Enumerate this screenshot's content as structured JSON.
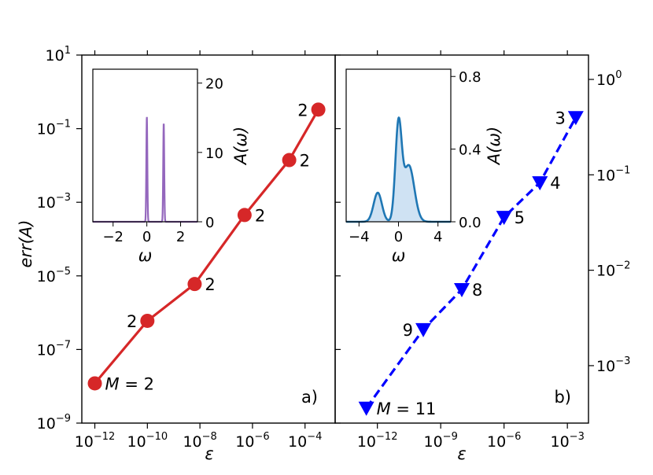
{
  "chart_data": [
    {
      "panel": "a",
      "type": "line",
      "panel_label": "a)",
      "xlabel": "ε",
      "ylabel": "err(A)",
      "x_scale": "log",
      "y_scale": "log",
      "xlim": [
        3.2e-13,
        0.0014
      ],
      "ylim": [
        1e-09,
        10
      ],
      "x_ticks": [
        {
          "value": 1e-12,
          "base": "10",
          "exp": "−12"
        },
        {
          "value": 1e-10,
          "base": "10",
          "exp": "−10"
        },
        {
          "value": 1e-08,
          "base": "10",
          "exp": "−8"
        },
        {
          "value": 1e-06,
          "base": "10",
          "exp": "−6"
        },
        {
          "value": 0.0001,
          "base": "10",
          "exp": "−4"
        }
      ],
      "y_ticks": [
        {
          "value": 1e-09,
          "base": "10",
          "exp": "−9"
        },
        {
          "value": 1e-07,
          "base": "10",
          "exp": "−7"
        },
        {
          "value": 1e-05,
          "base": "10",
          "exp": "−5"
        },
        {
          "value": 0.001,
          "base": "10",
          "exp": "−3"
        },
        {
          "value": 0.1,
          "base": "10",
          "exp": "−1"
        },
        {
          "value": 10,
          "base": "10",
          "exp": "1"
        }
      ],
      "color": "#d62728",
      "marker": "circle",
      "linestyle": "solid",
      "points": [
        {
          "x": 1e-12,
          "y": 1.2e-08,
          "label": "M = 2",
          "label_pos": "right"
        },
        {
          "x": 1e-10,
          "y": 6e-07,
          "label": "2",
          "label_pos": "left"
        },
        {
          "x": 6.3e-09,
          "y": 6e-06,
          "label": "2",
          "label_pos": "right"
        },
        {
          "x": 5e-07,
          "y": 0.00045,
          "label": "2",
          "label_pos": "right"
        },
        {
          "x": 2.5e-05,
          "y": 0.014,
          "label": "2",
          "label_pos": "right"
        },
        {
          "x": 0.00032,
          "y": 0.33,
          "label": "2",
          "label_pos": "left"
        }
      ],
      "inset": {
        "type": "line",
        "xlabel": "ω",
        "ylabel": "A(ω)",
        "xlim": [
          -3.2,
          3.0
        ],
        "ylim": [
          0,
          22
        ],
        "x_ticks": [
          {
            "value": -2,
            "label": "−2"
          },
          {
            "value": 0,
            "label": "0"
          },
          {
            "value": 2,
            "label": "2"
          }
        ],
        "y_ticks": [
          {
            "value": 0,
            "label": "0"
          },
          {
            "value": 10,
            "label": "10"
          },
          {
            "value": 20,
            "label": "20"
          }
        ],
        "color": "#9467bd",
        "peaks": [
          {
            "center": 0,
            "height": 15.2,
            "width": 0.03
          },
          {
            "center": 1,
            "height": 14.3,
            "width": 0.03
          }
        ]
      }
    },
    {
      "panel": "b",
      "type": "line",
      "panel_label": "b)",
      "xlabel": "ε",
      "ylabel": "",
      "x_scale": "log",
      "y_scale": "log",
      "y_axis_side": "right",
      "xlim": [
        1e-14,
        0.01
      ],
      "ylim": [
        0.00025,
        1.8
      ],
      "x_ticks": [
        {
          "value": 1e-12,
          "base": "10",
          "exp": "−12"
        },
        {
          "value": 1e-09,
          "base": "10",
          "exp": "−9"
        },
        {
          "value": 1e-06,
          "base": "10",
          "exp": "−6"
        },
        {
          "value": 0.001,
          "base": "10",
          "exp": "−3"
        }
      ],
      "y_ticks": [
        {
          "value": 0.001,
          "base": "10",
          "exp": "−3"
        },
        {
          "value": 0.01,
          "base": "10",
          "exp": "−2"
        },
        {
          "value": 0.1,
          "base": "10",
          "exp": "−1"
        },
        {
          "value": 1,
          "base": "10",
          "exp": "0"
        }
      ],
      "color": "#0000ff",
      "marker": "triangle-down",
      "linestyle": "dashed",
      "points": [
        {
          "x": 3e-13,
          "y": 0.00036,
          "label": "M = 11",
          "label_pos": "right"
        },
        {
          "x": 1.5e-10,
          "y": 0.0024,
          "label": "9",
          "label_pos": "left"
        },
        {
          "x": 1e-08,
          "y": 0.0063,
          "label": "8",
          "label_pos": "right"
        },
        {
          "x": 1e-06,
          "y": 0.036,
          "label": "5",
          "label_pos": "right"
        },
        {
          "x": 5e-05,
          "y": 0.083,
          "label": "4",
          "label_pos": "right"
        },
        {
          "x": 0.0025,
          "y": 0.4,
          "label": "3",
          "label_pos": "left"
        }
      ],
      "inset": {
        "type": "area",
        "xlabel": "ω",
        "ylabel": "A(ω)",
        "xlim": [
          -5.3,
          5.3
        ],
        "ylim": [
          0,
          0.84
        ],
        "x_ticks": [
          {
            "value": -4,
            "label": "−4"
          },
          {
            "value": 0,
            "label": "0"
          },
          {
            "value": 4,
            "label": "4"
          }
        ],
        "y_ticks": [
          {
            "value": 0,
            "label": "0.0"
          },
          {
            "value": 0.4,
            "label": "0.4"
          },
          {
            "value": 0.8,
            "label": "0.8"
          }
        ],
        "color": "#1f77b4",
        "fill": "#cfe2f3",
        "peaks": [
          {
            "center": -2.1,
            "height": 0.16,
            "width": 0.42
          },
          {
            "center": 0,
            "height": 0.52,
            "width": 0.32
          },
          {
            "center": 1.05,
            "height": 0.31,
            "width": 0.55
          }
        ]
      }
    }
  ]
}
